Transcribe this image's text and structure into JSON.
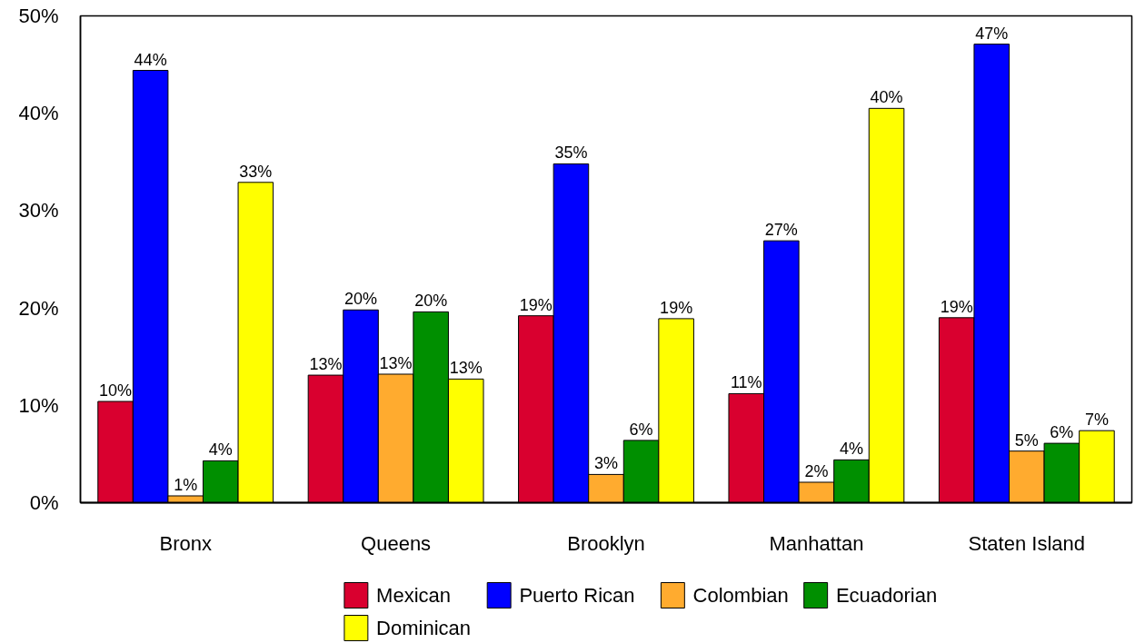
{
  "chart_data": {
    "type": "bar",
    "categories": [
      "Bronx",
      "Queens",
      "Brooklyn",
      "Manhattan",
      "Staten Island"
    ],
    "series": [
      {
        "name": "Mexican",
        "color": "#d9002f",
        "values": [
          10.4,
          13.1,
          19.2,
          11.2,
          19.0
        ],
        "value_labels": [
          "10%",
          "13%",
          "19%",
          "11%",
          "19%"
        ]
      },
      {
        "name": "Puerto Rican",
        "color": "#0000ff",
        "values": [
          44.4,
          19.8,
          34.8,
          26.9,
          47.1
        ],
        "value_labels": [
          "44%",
          "20%",
          "35%",
          "27%",
          "47%"
        ]
      },
      {
        "name": "Colombian",
        "color": "#ffab2f",
        "values": [
          0.7,
          13.2,
          2.9,
          2.1,
          5.3
        ],
        "value_labels": [
          "1%",
          "13%",
          "3%",
          "2%",
          "5%"
        ]
      },
      {
        "name": "Ecuadorian",
        "color": "#008f00",
        "values": [
          4.3,
          19.6,
          6.4,
          4.4,
          6.1
        ],
        "value_labels": [
          "4%",
          "20%",
          "6%",
          "4%",
          "6%"
        ]
      },
      {
        "name": "Dominican",
        "color": "#ffff00",
        "values": [
          32.9,
          12.7,
          18.9,
          40.5,
          7.4
        ],
        "value_labels": [
          "33%",
          "13%",
          "19%",
          "40%",
          "7%"
        ]
      }
    ],
    "ylim": [
      0,
      50
    ],
    "yticks": [
      {
        "value": 0,
        "label": "0%"
      },
      {
        "value": 10,
        "label": "10%"
      },
      {
        "value": 20,
        "label": "20%"
      },
      {
        "value": 30,
        "label": "30%"
      },
      {
        "value": 40,
        "label": "40%"
      },
      {
        "value": 50,
        "label": "50%"
      }
    ],
    "legend": "bottom",
    "grid": false
  }
}
